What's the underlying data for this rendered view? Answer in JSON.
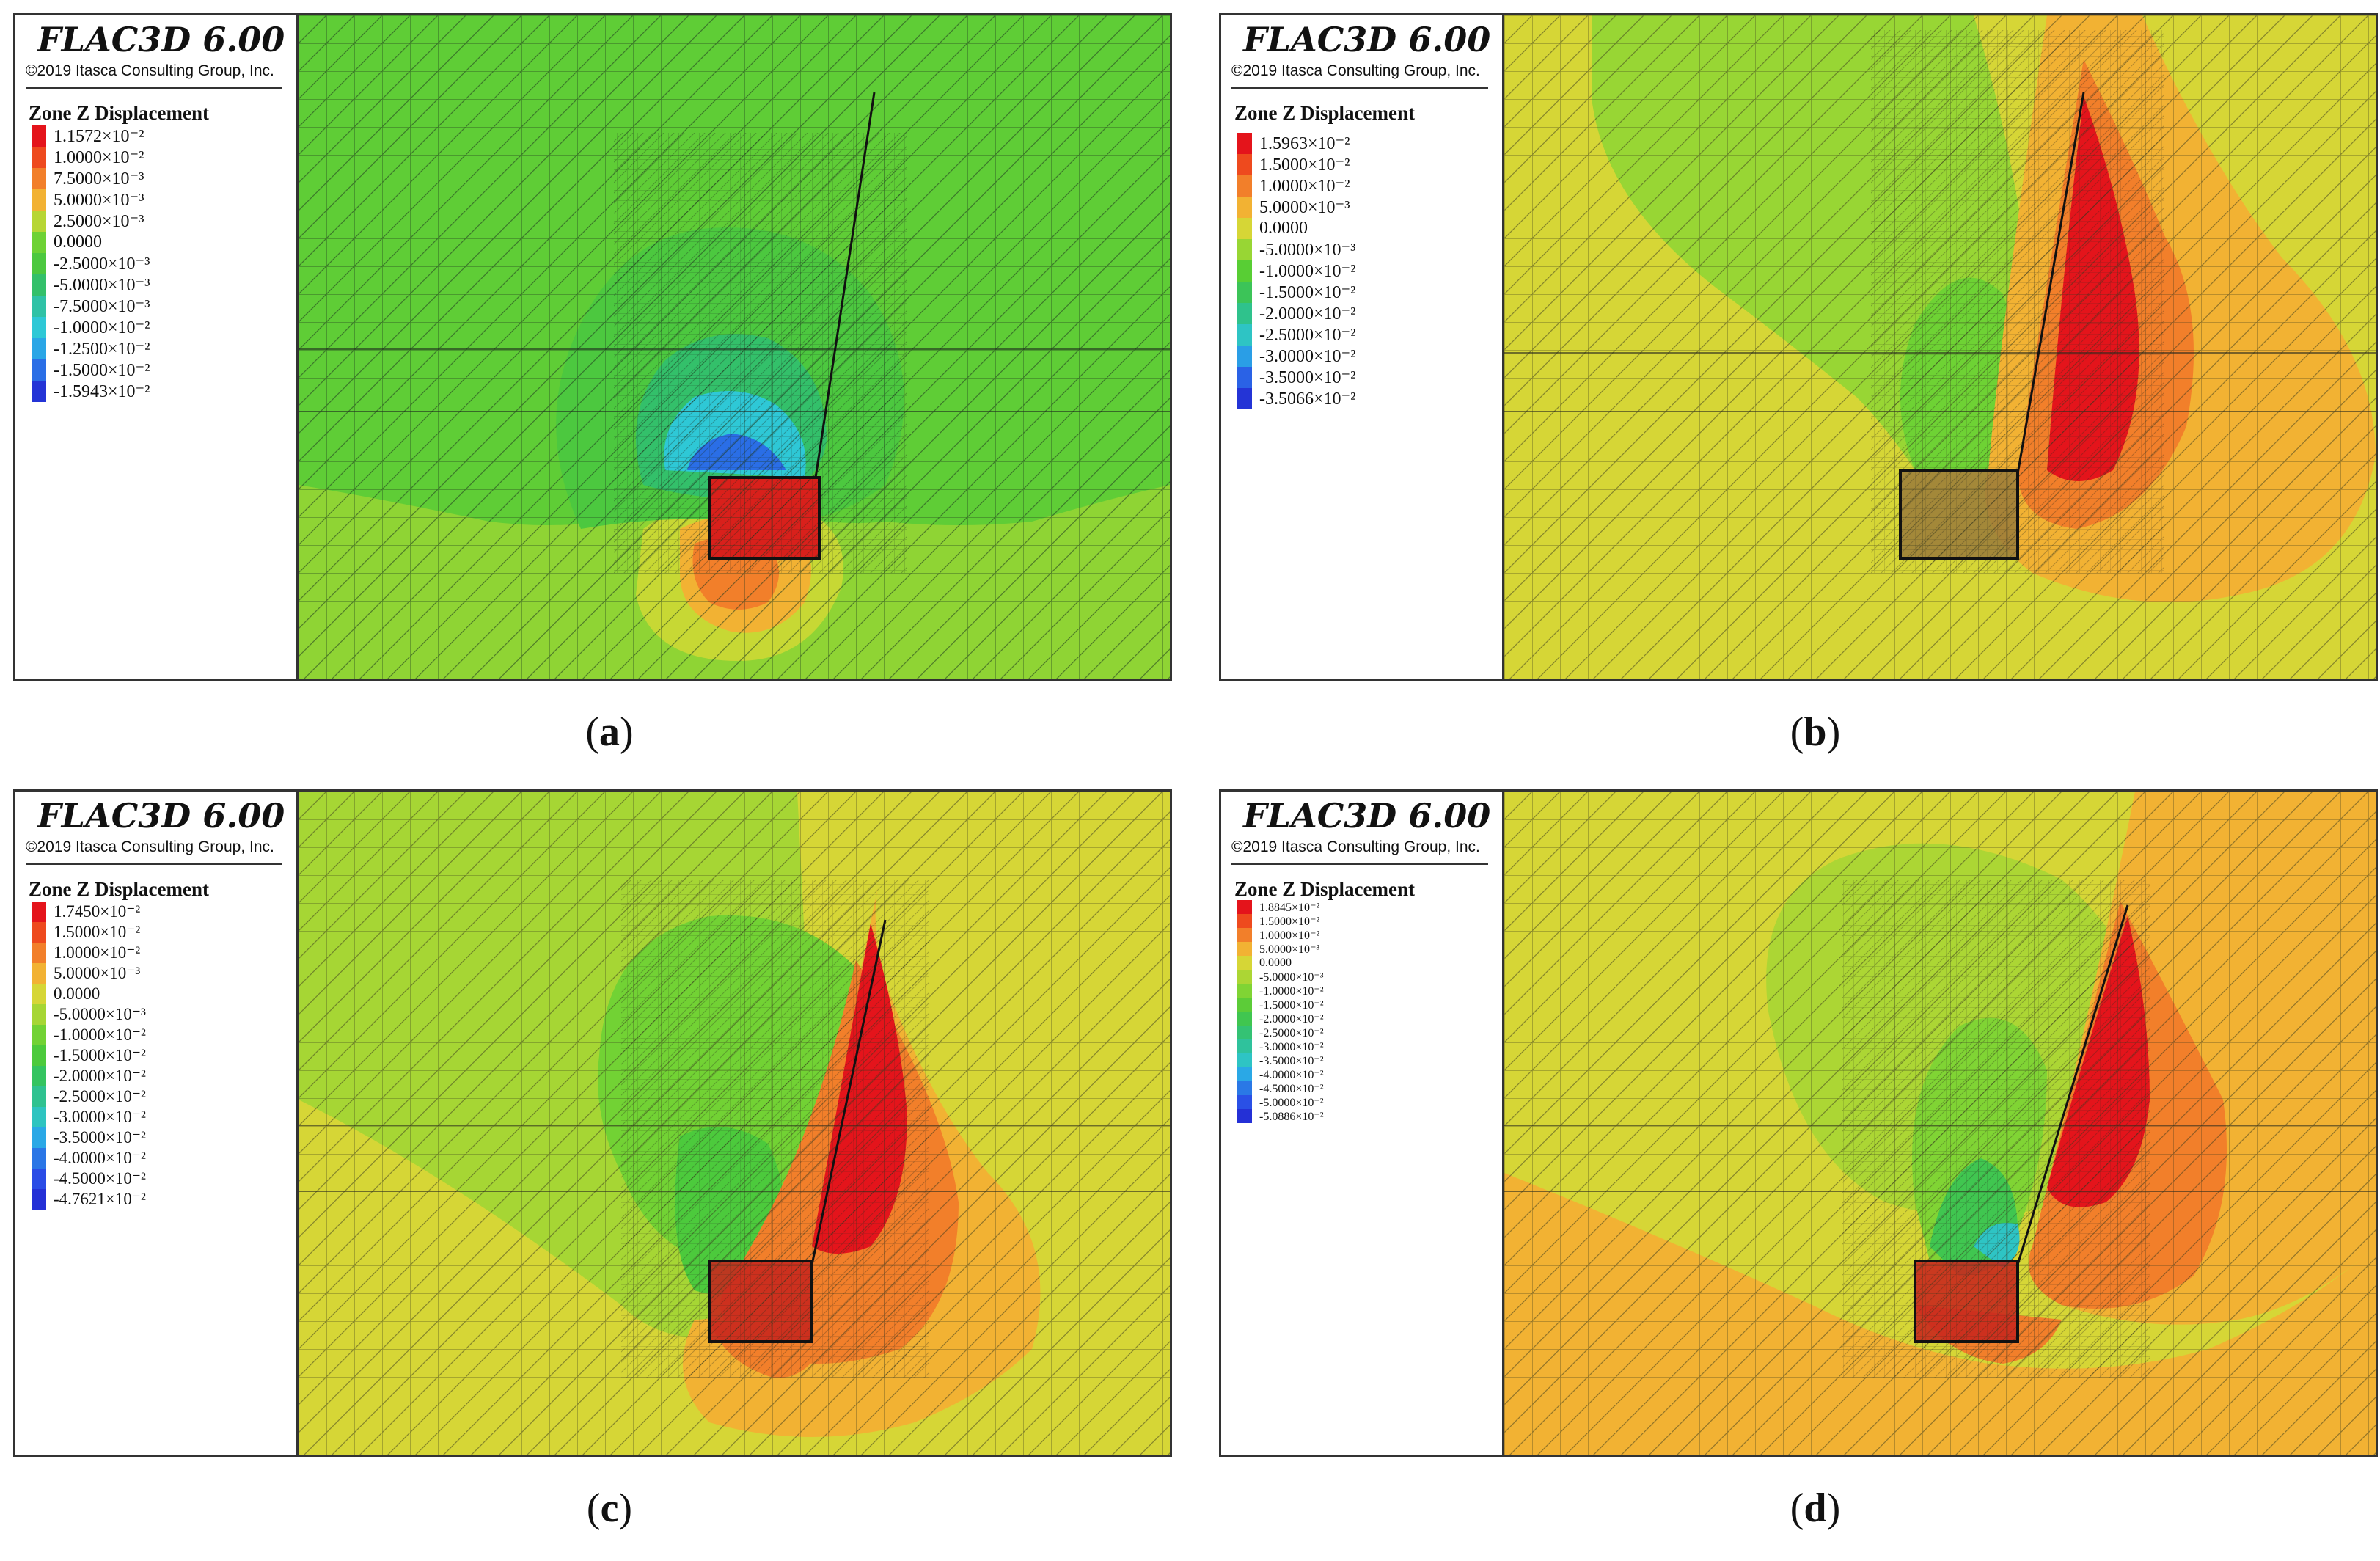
{
  "figure": {
    "panels": [
      {
        "id": "a",
        "caption_open": "(",
        "caption_letter": "a",
        "caption_close": ")",
        "app_title": "FLAC3D 6.00",
        "copyright": "©2019 Itasca Consulting Group, Inc.",
        "legend_title": "Zone Z Displacement",
        "legend": [
          {
            "label": "1.1572×10⁻²",
            "color": "#e4141b"
          },
          {
            "label": "1.0000×10⁻²",
            "color": "#ee4a1e"
          },
          {
            "label": "7.5000×10⁻³",
            "color": "#f27f2a"
          },
          {
            "label": "5.0000×10⁻³",
            "color": "#f2b233"
          },
          {
            "label": "2.5000×10⁻³",
            "color": "#b7d634"
          },
          {
            "label": "0.0000",
            "color": "#6ed234"
          },
          {
            "label": "-2.5000×10⁻³",
            "color": "#4cc83f"
          },
          {
            "label": "-5.0000×10⁻³",
            "color": "#33c06a"
          },
          {
            "label": "-7.5000×10⁻³",
            "color": "#2fc2a6"
          },
          {
            "label": "-1.0000×10⁻²",
            "color": "#2ec8d6"
          },
          {
            "label": "-1.2500×10⁻²",
            "color": "#2aa6e6"
          },
          {
            "label": "-1.5000×10⁻²",
            "color": "#2a6ee6"
          },
          {
            "label": "-1.5943×10⁻²",
            "color": "#2434d6"
          }
        ]
      },
      {
        "id": "b",
        "caption_open": "(",
        "caption_letter": "b",
        "caption_close": ")",
        "app_title": "FLAC3D 6.00",
        "copyright": "©2019 Itasca Consulting Group, Inc.",
        "legend_title": "Zone Z Displacement",
        "legend": [
          {
            "label": "1.5963×10⁻²",
            "color": "#e4141b"
          },
          {
            "label": "1.5000×10⁻²",
            "color": "#ee4a1e"
          },
          {
            "label": "1.0000×10⁻²",
            "color": "#f27f2a"
          },
          {
            "label": "5.0000×10⁻³",
            "color": "#f2b233"
          },
          {
            "label": "0.0000",
            "color": "#d6d636"
          },
          {
            "label": "-5.0000×10⁻³",
            "color": "#98d634"
          },
          {
            "label": "-1.0000×10⁻²",
            "color": "#58ce34"
          },
          {
            "label": "-1.5000×10⁻²",
            "color": "#3cc458"
          },
          {
            "label": "-2.0000×10⁻²",
            "color": "#2fc28c"
          },
          {
            "label": "-2.5000×10⁻²",
            "color": "#2ec4c4"
          },
          {
            "label": "-3.0000×10⁻²",
            "color": "#2a9ee6"
          },
          {
            "label": "-3.5000×10⁻²",
            "color": "#2a62e6"
          },
          {
            "label": "-3.5066×10⁻²",
            "color": "#2434d6"
          }
        ]
      },
      {
        "id": "c",
        "caption_open": "(",
        "caption_letter": "c",
        "caption_close": ")",
        "app_title": "FLAC3D 6.00",
        "copyright": "©2019 Itasca Consulting Group, Inc.",
        "legend_title": "Zone Z Displacement",
        "legend": [
          {
            "label": "1.7450×10⁻²",
            "color": "#e4141b"
          },
          {
            "label": "1.5000×10⁻²",
            "color": "#ee4a1e"
          },
          {
            "label": "1.0000×10⁻²",
            "color": "#f27f2a"
          },
          {
            "label": "5.0000×10⁻³",
            "color": "#f2b233"
          },
          {
            "label": "0.0000",
            "color": "#d6d636"
          },
          {
            "label": "-5.0000×10⁻³",
            "color": "#a6d634"
          },
          {
            "label": "-1.0000×10⁻²",
            "color": "#72d234"
          },
          {
            "label": "-1.5000×10⁻²",
            "color": "#4cca3c"
          },
          {
            "label": "-2.0000×10⁻²",
            "color": "#34c460"
          },
          {
            "label": "-2.5000×10⁻²",
            "color": "#2fc290"
          },
          {
            "label": "-3.0000×10⁻²",
            "color": "#2ec4c0"
          },
          {
            "label": "-3.5000×10⁻²",
            "color": "#2aa8e6"
          },
          {
            "label": "-4.0000×10⁻²",
            "color": "#2a76e6"
          },
          {
            "label": "-4.5000×10⁻²",
            "color": "#2a4ce6"
          },
          {
            "label": "-4.7621×10⁻²",
            "color": "#2430d6"
          }
        ]
      },
      {
        "id": "d",
        "caption_open": "(",
        "caption_letter": "d",
        "caption_close": ")",
        "app_title": "FLAC3D 6.00",
        "copyright": "©2019 Itasca Consulting Group, Inc.",
        "legend_title": "Zone Z Displacement",
        "legend": [
          {
            "label": "1.8845×10⁻²",
            "color": "#e4141b"
          },
          {
            "label": "1.5000×10⁻²",
            "color": "#ee4a1e"
          },
          {
            "label": "1.0000×10⁻²",
            "color": "#f27f2a"
          },
          {
            "label": "5.0000×10⁻³",
            "color": "#f2b233"
          },
          {
            "label": "0.0000",
            "color": "#d6d636"
          },
          {
            "label": "-5.0000×10⁻³",
            "color": "#acd634"
          },
          {
            "label": "-1.0000×10⁻²",
            "color": "#80d434"
          },
          {
            "label": "-1.5000×10⁻²",
            "color": "#5ccc38"
          },
          {
            "label": "-2.0000×10⁻²",
            "color": "#40c650"
          },
          {
            "label": "-2.5000×10⁻²",
            "color": "#34c274"
          },
          {
            "label": "-3.0000×10⁻²",
            "color": "#2fc29c"
          },
          {
            "label": "-3.5000×10⁻²",
            "color": "#2ec4c4"
          },
          {
            "label": "-4.0000×10⁻²",
            "color": "#2aa8e6"
          },
          {
            "label": "-4.5000×10⁻²",
            "color": "#2a78e6"
          },
          {
            "label": "-5.0000×10⁻²",
            "color": "#2a50e6"
          },
          {
            "label": "-5.0886×10⁻²",
            "color": "#2430d6"
          }
        ]
      }
    ]
  }
}
